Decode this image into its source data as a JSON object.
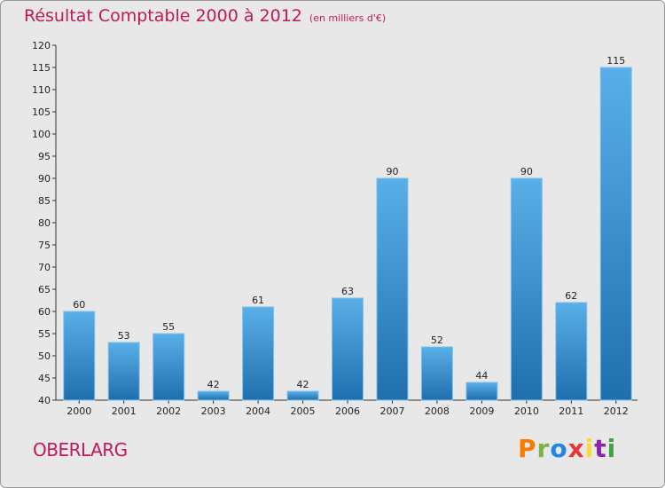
{
  "header": {
    "title": "Résultat Comptable 2000 à 2012",
    "subtitle": "(en milliers d'€)"
  },
  "footer": {
    "commune": "OBERLARG",
    "logo": {
      "letters": [
        "P",
        "r",
        "o",
        "x",
        "i",
        "t",
        "i"
      ],
      "colors": [
        "#f57c00",
        "#7cb342",
        "#1e88e5",
        "#e53935",
        "#fdd835",
        "#8e24aa",
        "#43a047"
      ]
    }
  },
  "chart_data": {
    "type": "bar",
    "title": "Résultat Comptable 2000 à 2012",
    "subtitle": "(en milliers d'€)",
    "xlabel": "",
    "ylabel": "",
    "categories": [
      "2000",
      "2001",
      "2002",
      "2003",
      "2004",
      "2005",
      "2006",
      "2007",
      "2008",
      "2009",
      "2010",
      "2011",
      "2012"
    ],
    "values": [
      60,
      53,
      55,
      42,
      61,
      42,
      63,
      90,
      52,
      44,
      90,
      62,
      115
    ],
    "ylim": [
      40,
      120
    ],
    "yticks": [
      40,
      45,
      50,
      55,
      60,
      65,
      70,
      75,
      80,
      85,
      90,
      95,
      100,
      105,
      110,
      115,
      120
    ],
    "grid": false,
    "bar_color_top": "#5aafe8",
    "bar_color_bottom": "#1f6fae"
  }
}
